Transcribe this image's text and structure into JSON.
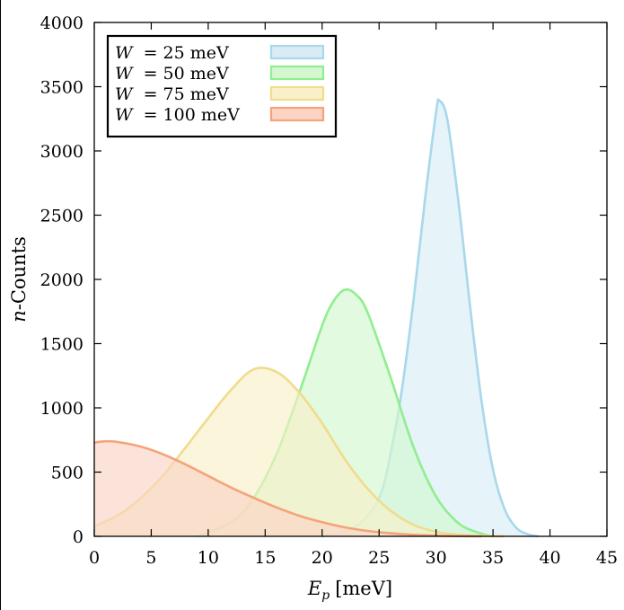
{
  "chart_data": {
    "type": "area",
    "xlabel": {
      "symbol": "E",
      "subscript": "p",
      "unit": "[meV]"
    },
    "ylabel": {
      "symbol": "n",
      "rest": "-Counts"
    },
    "xlim": [
      0,
      45
    ],
    "ylim": [
      0,
      4000
    ],
    "xticks": [
      "0",
      "5",
      "10",
      "15",
      "20",
      "25",
      "30",
      "35",
      "40",
      "45"
    ],
    "yticks": [
      "0",
      "500",
      "1000",
      "1500",
      "2000",
      "2500",
      "3000",
      "3500",
      "4000"
    ],
    "grid": false,
    "legend_position": "top-left",
    "series": [
      {
        "name": "W = 25 meV",
        "legend_symbol": "W",
        "legend_rest": "=  25 meV",
        "line_color": "#a8d8ea",
        "fill_color": "#d9ecf4",
        "x": [
          20,
          23,
          25,
          26,
          27,
          28,
          29,
          30,
          30.3,
          31,
          32,
          33,
          34,
          35,
          36,
          37,
          38,
          39
        ],
        "y": [
          0,
          80,
          300,
          640,
          1140,
          1820,
          2600,
          3300,
          3390,
          3240,
          2580,
          1780,
          1050,
          520,
          215,
          70,
          18,
          0
        ]
      },
      {
        "name": "W = 50 meV",
        "legend_symbol": "W",
        "legend_rest": "=  50 meV",
        "line_color": "#90ee90",
        "fill_color": "#d3f7d0",
        "x": [
          9,
          12,
          14,
          16,
          18,
          20,
          21,
          22,
          23,
          24,
          26,
          28,
          30,
          32,
          34,
          35
        ],
        "y": [
          0,
          110,
          300,
          640,
          1120,
          1640,
          1830,
          1920,
          1880,
          1740,
          1240,
          700,
          310,
          100,
          20,
          0
        ]
      },
      {
        "name": "W = 75 meV",
        "legend_symbol": "W",
        "legend_rest": "=  75 meV",
        "line_color": "#f0dc8c",
        "fill_color": "#f8f0c8",
        "x": [
          0,
          2,
          4,
          6,
          8,
          10,
          12,
          14,
          16,
          18,
          20,
          22,
          24,
          26,
          28,
          30,
          32,
          34,
          36
        ],
        "y": [
          80,
          160,
          290,
          470,
          690,
          920,
          1140,
          1300,
          1280,
          1120,
          880,
          600,
          370,
          200,
          90,
          36,
          12,
          4,
          0
        ]
      },
      {
        "name": "W = 100 meV",
        "legend_symbol": "W",
        "legend_rest": "= 100 meV",
        "line_color": "#f5a37a",
        "fill_color": "#fbd4c4",
        "x": [
          0,
          1,
          2,
          4,
          6,
          8,
          10,
          12,
          14,
          16,
          18,
          20,
          22,
          24,
          26,
          28,
          30,
          32,
          34
        ],
        "y": [
          730,
          740,
          735,
          700,
          640,
          560,
          470,
          380,
          300,
          225,
          160,
          110,
          70,
          42,
          24,
          12,
          6,
          2,
          0
        ]
      }
    ]
  }
}
